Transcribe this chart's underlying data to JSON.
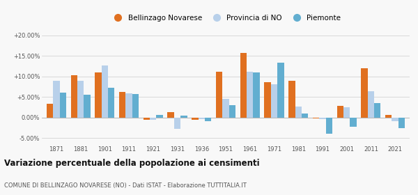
{
  "years": [
    1871,
    1881,
    1901,
    1911,
    1921,
    1931,
    1936,
    1951,
    1961,
    1971,
    1981,
    1991,
    2001,
    2011,
    2021
  ],
  "bellinzago": [
    3.3,
    10.4,
    11.0,
    6.3,
    -0.5,
    1.3,
    -0.5,
    11.2,
    15.8,
    8.6,
    8.9,
    -0.2,
    2.8,
    12.0,
    0.7
  ],
  "provincia_no": [
    8.9,
    8.9,
    12.7,
    5.9,
    -0.5,
    -2.7,
    -0.4,
    4.6,
    11.1,
    8.2,
    2.7,
    -0.3,
    2.5,
    6.5,
    -0.8
  ],
  "piemonte": [
    6.1,
    5.5,
    7.3,
    5.8,
    0.7,
    0.5,
    -0.9,
    3.0,
    11.0,
    13.3,
    1.0,
    -4.0,
    -2.3,
    3.5,
    -2.5
  ],
  "color_bellinzago": "#e07020",
  "color_provincia": "#b8d0ea",
  "color_piemonte": "#62aed0",
  "title": "Variazione percentuale della popolazione ai censimenti",
  "subtitle": "COMUNE DI BELLINZAGO NOVARESE (NO) - Dati ISTAT - Elaborazione TUTTITALIA.IT",
  "legend_labels": [
    "Bellinzago Novarese",
    "Provincia di NO",
    "Piemonte"
  ],
  "ylim": [
    -6.5,
    22.0
  ],
  "yticks": [
    -5.0,
    0.0,
    5.0,
    10.0,
    15.0,
    20.0
  ],
  "ytick_labels": [
    "-5.00%",
    "0.00%",
    "+5.00%",
    "+10.00%",
    "+15.00%",
    "+20.00%"
  ],
  "background_color": "#f8f8f8"
}
